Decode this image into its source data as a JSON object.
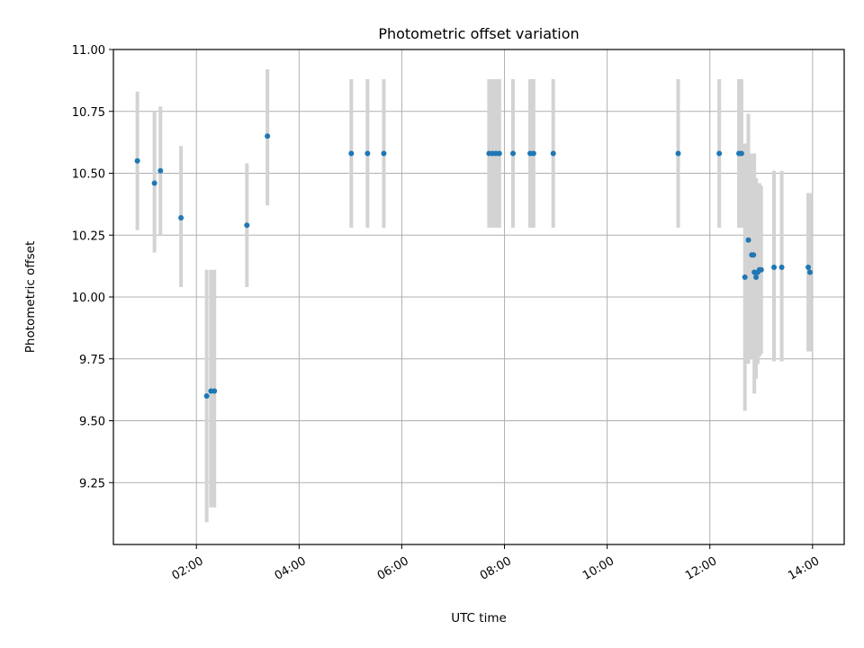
{
  "chart_data": {
    "type": "scatter",
    "title": "Photometric offset variation",
    "xlabel": "UTC time",
    "ylabel": "Photometric offset",
    "grid": true,
    "x_tick_labels": [
      "02:00",
      "04:00",
      "06:00",
      "08:00",
      "10:00",
      "12:00",
      "14:00"
    ],
    "x_tick_hours": [
      2,
      4,
      6,
      8,
      10,
      12,
      14
    ],
    "y_ticks": [
      9.25,
      9.5,
      9.75,
      10.0,
      10.25,
      10.5,
      10.75,
      11.0
    ],
    "y_tick_labels": [
      "9.25",
      "9.50",
      "9.75",
      "10.00",
      "10.25",
      "10.50",
      "10.75",
      "11.00"
    ],
    "xlim": [
      "00:23",
      "14:37"
    ],
    "ylim": [
      9.0,
      11.0
    ],
    "colors": {
      "points": "#1f77b4",
      "errorbars": "#d3d3d3"
    },
    "points": [
      {
        "t": "00:51",
        "y": 10.55,
        "lo": 10.27,
        "hi": 10.83
      },
      {
        "t": "01:11",
        "y": 10.46,
        "lo": 10.18,
        "hi": 10.75
      },
      {
        "t": "01:18",
        "y": 10.51,
        "lo": 10.25,
        "hi": 10.77
      },
      {
        "t": "01:42",
        "y": 10.32,
        "lo": 10.04,
        "hi": 10.61
      },
      {
        "t": "02:12",
        "y": 9.6,
        "lo": 9.09,
        "hi": 10.11
      },
      {
        "t": "02:17",
        "y": 9.62,
        "lo": 9.15,
        "hi": 10.11
      },
      {
        "t": "02:21",
        "y": 9.62,
        "lo": 9.15,
        "hi": 10.11
      },
      {
        "t": "02:59",
        "y": 10.29,
        "lo": 10.04,
        "hi": 10.54
      },
      {
        "t": "03:23",
        "y": 10.65,
        "lo": 10.37,
        "hi": 10.92
      },
      {
        "t": "05:01",
        "y": 10.58,
        "lo": 10.28,
        "hi": 10.88
      },
      {
        "t": "05:20",
        "y": 10.58,
        "lo": 10.28,
        "hi": 10.88
      },
      {
        "t": "05:39",
        "y": 10.58,
        "lo": 10.28,
        "hi": 10.88
      },
      {
        "t": "07:42",
        "y": 10.58,
        "lo": 10.28,
        "hi": 10.88
      },
      {
        "t": "07:46",
        "y": 10.58,
        "lo": 10.28,
        "hi": 10.88
      },
      {
        "t": "07:50",
        "y": 10.58,
        "lo": 10.28,
        "hi": 10.88
      },
      {
        "t": "07:54",
        "y": 10.58,
        "lo": 10.28,
        "hi": 10.88
      },
      {
        "t": "08:10",
        "y": 10.58,
        "lo": 10.28,
        "hi": 10.88
      },
      {
        "t": "08:30",
        "y": 10.58,
        "lo": 10.28,
        "hi": 10.88
      },
      {
        "t": "08:34",
        "y": 10.58,
        "lo": 10.28,
        "hi": 10.88
      },
      {
        "t": "08:57",
        "y": 10.58,
        "lo": 10.28,
        "hi": 10.88
      },
      {
        "t": "11:23",
        "y": 10.58,
        "lo": 10.28,
        "hi": 10.88
      },
      {
        "t": "12:11",
        "y": 10.58,
        "lo": 10.28,
        "hi": 10.88
      },
      {
        "t": "12:34",
        "y": 10.58,
        "lo": 10.28,
        "hi": 10.88
      },
      {
        "t": "12:37",
        "y": 10.58,
        "lo": 10.28,
        "hi": 10.88
      },
      {
        "t": "12:41",
        "y": 10.08,
        "lo": 9.54,
        "hi": 10.62
      },
      {
        "t": "12:45",
        "y": 10.23,
        "lo": 9.73,
        "hi": 10.74
      },
      {
        "t": "12:49",
        "y": 10.17,
        "lo": 9.75,
        "hi": 10.58
      },
      {
        "t": "12:51",
        "y": 10.17,
        "lo": 9.75,
        "hi": 10.58
      },
      {
        "t": "12:52",
        "y": 10.1,
        "lo": 9.61,
        "hi": 10.58
      },
      {
        "t": "12:54",
        "y": 10.08,
        "lo": 9.67,
        "hi": 10.48
      },
      {
        "t": "12:56",
        "y": 10.1,
        "lo": 9.73,
        "hi": 10.46
      },
      {
        "t": "12:58",
        "y": 10.11,
        "lo": 9.76,
        "hi": 10.46
      },
      {
        "t": "13:00",
        "y": 10.11,
        "lo": 9.77,
        "hi": 10.45
      },
      {
        "t": "13:15",
        "y": 10.12,
        "lo": 9.74,
        "hi": 10.51
      },
      {
        "t": "13:24",
        "y": 10.12,
        "lo": 9.74,
        "hi": 10.51
      },
      {
        "t": "13:55",
        "y": 10.12,
        "lo": 9.78,
        "hi": 10.42
      },
      {
        "t": "13:57",
        "y": 10.1,
        "lo": 9.78,
        "hi": 10.42
      }
    ]
  }
}
